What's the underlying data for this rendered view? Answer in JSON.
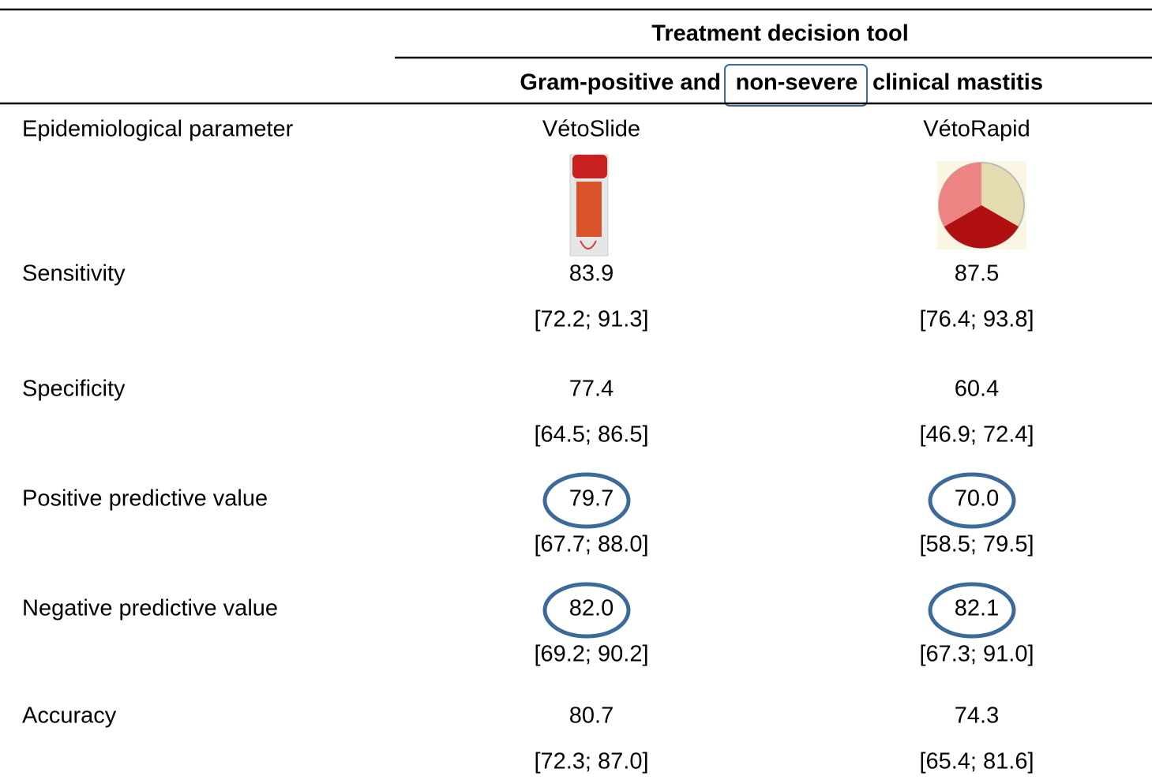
{
  "header": {
    "title": "Treatment decision tool",
    "subtitle": [
      "Gram-positive and",
      "non-severe",
      "clinical mastitis"
    ]
  },
  "columns": [
    "Epidemiological parameter",
    "VétoSlide",
    "VétoRapid"
  ],
  "rows": [
    {
      "label": "Sensitivity",
      "cells": [
        {
          "value": "83.9",
          "ci": "[72.2; 91.3]"
        },
        {
          "value": "87.5",
          "ci": "[76.4; 93.8]"
        }
      ]
    },
    {
      "label": "Specificity",
      "cells": [
        {
          "value": "77.4",
          "ci": "[64.5; 86.5]"
        },
        {
          "value": "60.4",
          "ci": "[46.9; 72.4]"
        }
      ]
    },
    {
      "label": "Positive predictive value",
      "cells": [
        {
          "value": "79.7",
          "ci": "[67.7; 88.0]"
        },
        {
          "value": "70.0",
          "ci": "[58.5; 79.5]"
        }
      ]
    },
    {
      "label": "Negative predictive value",
      "cells": [
        {
          "value": "82.0",
          "ci": "[69.2; 90.2]"
        },
        {
          "value": "82.1",
          "ci": "[67.3; 91.0]"
        }
      ]
    },
    {
      "label": "Accuracy",
      "cells": [
        {
          "value": "80.7",
          "ci": "[72.3; 87.0]"
        },
        {
          "value": "74.3",
          "ci": "[65.4; 81.6]"
        }
      ]
    }
  ]
}
